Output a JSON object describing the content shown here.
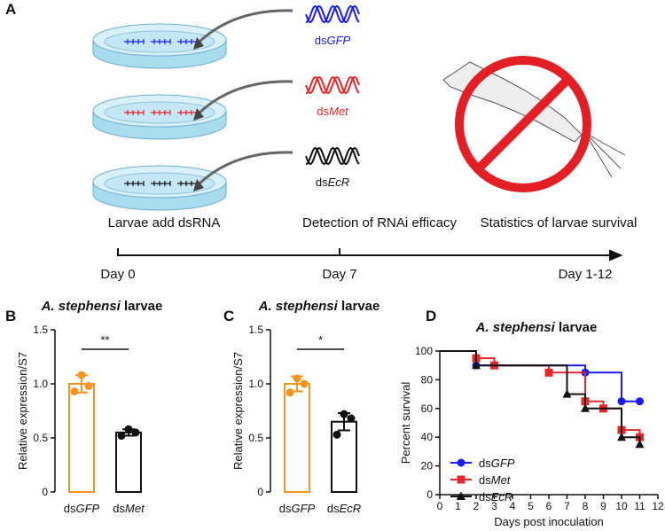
{
  "panel_a": {
    "label": "A",
    "treatments": [
      {
        "name": "dsGFP",
        "color": "#1a1aff"
      },
      {
        "name": "dsMet",
        "color": "#e8262a"
      },
      {
        "name": "dsEcR",
        "color": "#111111"
      }
    ],
    "timeline": [
      {
        "event": "Larvae add dsRNA",
        "day": "Day 0"
      },
      {
        "event": "Detection of RNAi efficacy",
        "day": "Day 7"
      },
      {
        "event": "Statistics of larvae survival",
        "day": "Day 1-12"
      }
    ]
  },
  "chart_data": [
    {
      "type": "bar",
      "panel": "B",
      "title": "A. stephensi larvae",
      "ylabel": "Relative expression/S7",
      "categories": [
        "dsGFP",
        "dsMet"
      ],
      "values": [
        1.0,
        0.55
      ],
      "errors": [
        0.08,
        0.03
      ],
      "points": [
        [
          1.08,
          0.93,
          0.98
        ],
        [
          0.58,
          0.52,
          0.55
        ]
      ],
      "colors": [
        "#f7941d",
        "#111111"
      ],
      "significance": "**",
      "ylim": [
        0,
        1.5
      ],
      "yticks": [
        0,
        0.5,
        {
          "value": 1,
          "label": "1.0"
        },
        1.5
      ]
    },
    {
      "type": "bar",
      "panel": "C",
      "title": "A. stephensi larvae",
      "ylabel": "Relative expression/S7",
      "categories": [
        "dsGFP",
        "dsEcR"
      ],
      "values": [
        1.0,
        0.65
      ],
      "errors": [
        0.07,
        0.08
      ],
      "points": [
        [
          1.05,
          0.92,
          1.0
        ],
        [
          0.72,
          0.53,
          0.68
        ]
      ],
      "colors": [
        "#f7941d",
        "#111111"
      ],
      "significance": "*",
      "ylim": [
        0,
        1.5
      ],
      "yticks": [
        0,
        0.5,
        {
          "value": 1,
          "label": "1.0"
        },
        1.5
      ]
    },
    {
      "type": "line",
      "panel": "D",
      "title": "A. stephensi larvae",
      "xlabel": "Days post inoculation",
      "ylabel": "Percent survival",
      "xlim": [
        0,
        12
      ],
      "xticks": [
        0,
        1,
        2,
        3,
        4,
        5,
        6,
        7,
        8,
        9,
        10,
        11,
        12
      ],
      "ylim": [
        0,
        100
      ],
      "yticks": [
        0,
        20,
        40,
        60,
        80,
        100
      ],
      "legend": "lower left",
      "series": [
        {
          "name": "dsGFP",
          "color": "#1a1aff",
          "marker": "circle",
          "x": [
            0,
            2,
            8,
            10,
            11
          ],
          "values": [
            100,
            90,
            85,
            65,
            65
          ]
        },
        {
          "name": "dsMet",
          "color": "#e8262a",
          "marker": "square",
          "x": [
            0,
            2,
            3,
            6,
            8,
            9,
            10,
            11
          ],
          "values": [
            100,
            95,
            90,
            85,
            65,
            60,
            45,
            40
          ]
        },
        {
          "name": "dsEcR",
          "color": "#111111",
          "marker": "triangle",
          "x": [
            0,
            2,
            7,
            8,
            10,
            11
          ],
          "values": [
            100,
            90,
            70,
            60,
            40,
            35
          ]
        }
      ]
    }
  ]
}
